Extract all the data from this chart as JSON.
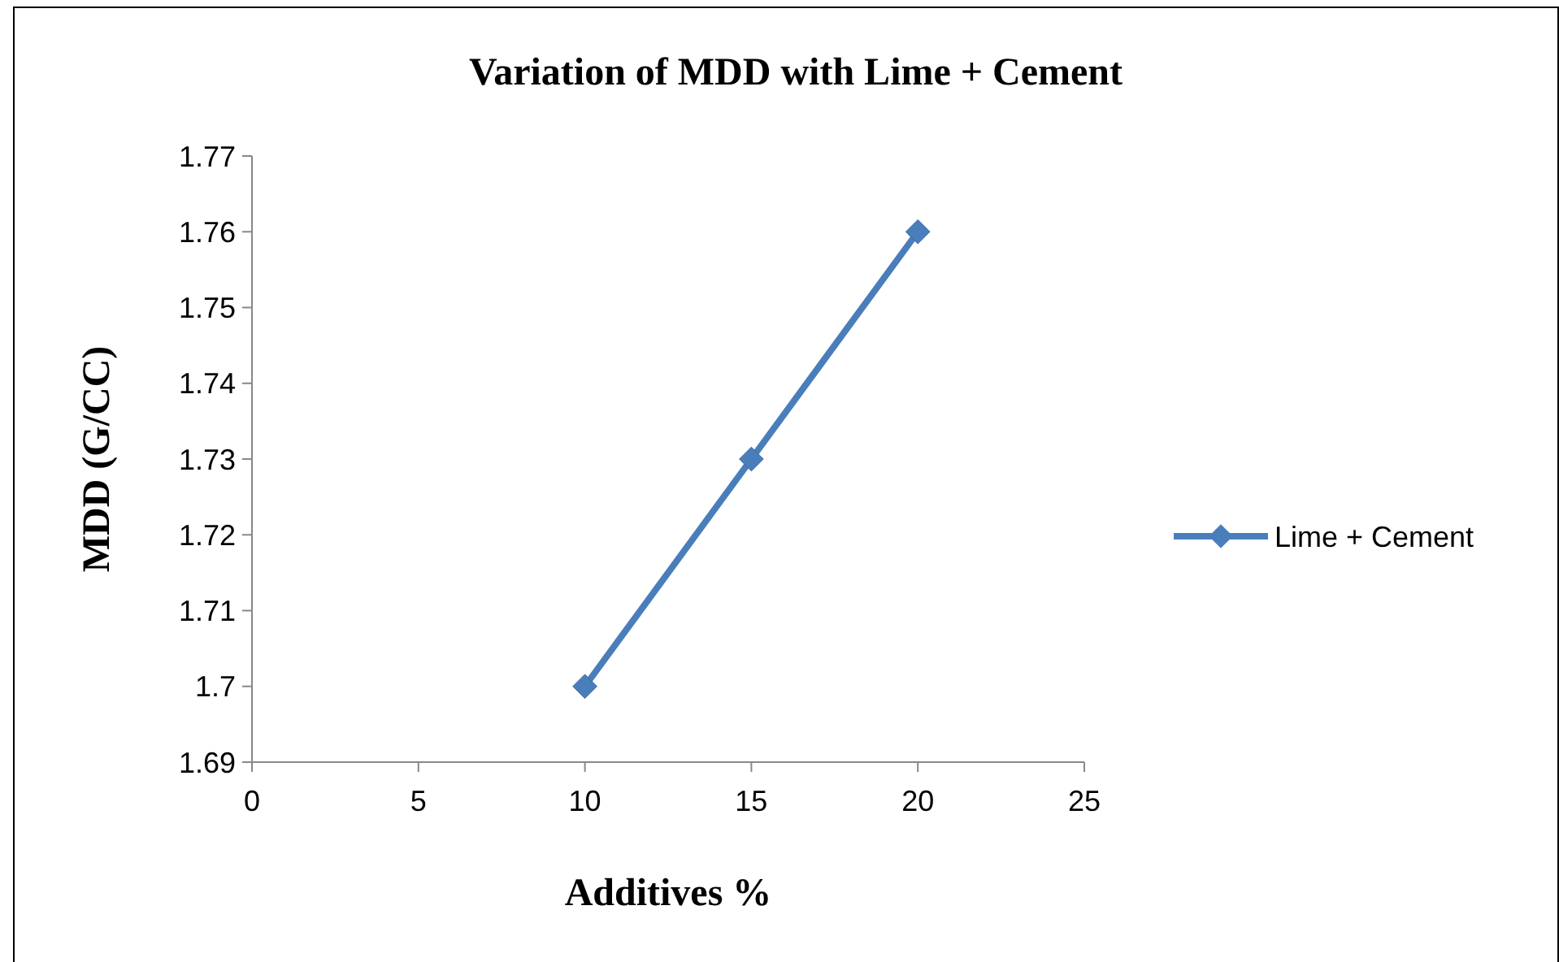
{
  "chart_data": {
    "type": "line",
    "title": "Variation of MDD with Lime + Cement",
    "xlabel": "Additives %",
    "ylabel": "MDD (G/CC)",
    "x": [
      10,
      15,
      20
    ],
    "series": [
      {
        "name": "Lime + Cement",
        "color": "#4a7ebb",
        "values": [
          1.7,
          1.73,
          1.76
        ]
      }
    ],
    "xlim": [
      0,
      25
    ],
    "xticks": [
      0,
      5,
      10,
      15,
      20,
      25
    ],
    "ylim": [
      1.69,
      1.77
    ],
    "yticks": [
      1.69,
      1.7,
      1.71,
      1.72,
      1.73,
      1.74,
      1.75,
      1.76,
      1.77
    ],
    "grid": false,
    "legend": "right",
    "marker": "diamond",
    "line_style": "solid"
  }
}
